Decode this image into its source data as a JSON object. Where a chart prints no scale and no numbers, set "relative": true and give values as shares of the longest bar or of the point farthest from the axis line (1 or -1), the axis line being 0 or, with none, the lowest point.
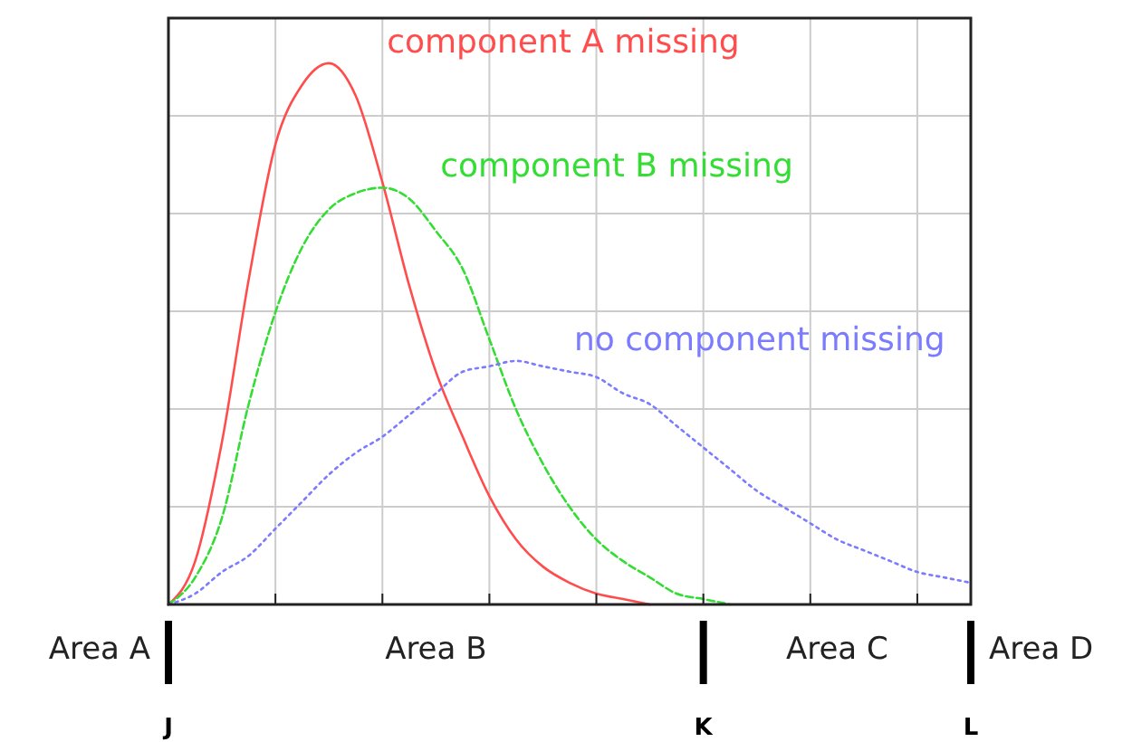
{
  "chart_data": {
    "type": "line",
    "relative": true,
    "grid": true,
    "categories": [
      "J",
      null,
      null,
      null,
      null,
      null,
      null,
      null,
      null,
      null,
      null,
      null,
      null,
      null,
      null,
      null,
      null,
      null,
      null,
      null,
      "K",
      null,
      null,
      null,
      null,
      null,
      null,
      null,
      null,
      null,
      "L"
    ],
    "series": [
      {
        "name": "component A missing",
        "color": "#ff4d4d",
        "line_style": "solid",
        "values": [
          0,
          0.08,
          0.3,
          0.6,
          0.85,
          0.96,
          1,
          0.94,
          0.78,
          0.59,
          0.43,
          0.31,
          0.2,
          0.12,
          0.07,
          0.04,
          0.02,
          0.01,
          0,
          null,
          null,
          null,
          null,
          null,
          null,
          null,
          null,
          null,
          null,
          null,
          null
        ]
      },
      {
        "name": "component B missing",
        "color": "#33dd33",
        "line_style": "dashed",
        "values": [
          0,
          0.05,
          0.16,
          0.37,
          0.54,
          0.66,
          0.73,
          0.76,
          0.77,
          0.75,
          0.69,
          0.62,
          0.49,
          0.36,
          0.26,
          0.18,
          0.12,
          0.08,
          0.05,
          0.02,
          0.01,
          0,
          null,
          null,
          null,
          null,
          null,
          null,
          null,
          null,
          null
        ]
      },
      {
        "name": "no component missing",
        "color": "#7b7bff",
        "line_style": "dotted",
        "values": [
          0,
          0.02,
          0.06,
          0.09,
          0.14,
          0.19,
          0.24,
          0.28,
          0.31,
          0.35,
          0.39,
          0.43,
          0.44,
          0.45,
          0.44,
          0.43,
          0.42,
          0.39,
          0.37,
          0.33,
          0.29,
          0.25,
          0.21,
          0.18,
          0.15,
          0.12,
          0.1,
          0.08,
          0.06,
          0.05,
          0.04
        ]
      }
    ],
    "annotations": [
      "Area A",
      "Area B",
      "Area C",
      "Area D"
    ]
  }
}
